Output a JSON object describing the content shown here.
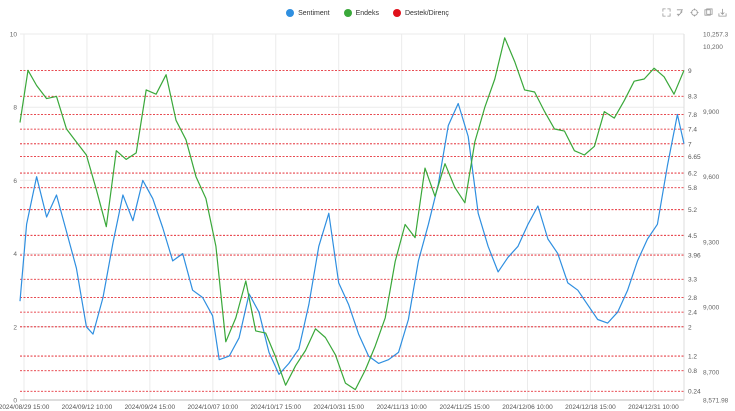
{
  "legend": [
    {
      "name": "Sentiment",
      "color": "#2f8fe0"
    },
    {
      "name": "Endeks",
      "color": "#3aa83a"
    },
    {
      "name": "Destek/Direnç",
      "color": "#e0101a"
    }
  ],
  "toolbox": [
    "zoom-icon",
    "zoom-reset-icon",
    "restore-icon",
    "data-view-icon",
    "save-image-icon"
  ],
  "chart_data": {
    "type": "line",
    "x_labels": [
      "2024/08/29 15:00",
      "2024/09/12 10:00",
      "2024/09/24 15:00",
      "2024/10/07 10:00",
      "2024/10/17 15:00",
      "2024/10/31 15:00",
      "2024/11/13 10:00",
      "2024/11/25 15:00",
      "2024/12/06 10:00",
      "2024/12/18 15:00",
      "2024/12/31 10:00"
    ],
    "y_left": {
      "min": 0,
      "max": 10,
      "ticks": [
        0,
        2,
        4,
        6,
        8,
        10
      ]
    },
    "y_right": {
      "min": 8571.98,
      "max": 10257.3,
      "ticks": [
        8571.98,
        8700,
        9000,
        9300,
        9600,
        9900,
        10200,
        10257.3
      ]
    },
    "grid": true,
    "legend_position": "top-center",
    "levels": [
      0.24,
      0.8,
      1.2,
      2,
      2.4,
      2.8,
      3.3,
      3.96,
      4.5,
      5.2,
      5.8,
      6.2,
      6.65,
      7,
      7.4,
      7.8,
      8.3,
      9
    ],
    "series": [
      {
        "name": "Sentiment",
        "axis": "left",
        "color": "#2f8fe0",
        "x": [
          0,
          0.01,
          0.025,
          0.04,
          0.055,
          0.07,
          0.085,
          0.1,
          0.11,
          0.125,
          0.14,
          0.155,
          0.17,
          0.185,
          0.2,
          0.215,
          0.23,
          0.245,
          0.26,
          0.275,
          0.29,
          0.3,
          0.315,
          0.33,
          0.345,
          0.36,
          0.375,
          0.39,
          0.405,
          0.42,
          0.435,
          0.45,
          0.465,
          0.48,
          0.495,
          0.51,
          0.525,
          0.54,
          0.555,
          0.57,
          0.585,
          0.6,
          0.615,
          0.63,
          0.645,
          0.66,
          0.675,
          0.69,
          0.705,
          0.72,
          0.735,
          0.75,
          0.765,
          0.78,
          0.795,
          0.81,
          0.825,
          0.84,
          0.855,
          0.87,
          0.885,
          0.9,
          0.915,
          0.93,
          0.945,
          0.96,
          0.975,
          0.99,
          1
        ],
        "y": [
          2.7,
          4.8,
          6.1,
          5.0,
          5.6,
          4.6,
          3.6,
          2.0,
          1.8,
          2.8,
          4.3,
          5.6,
          4.9,
          6.0,
          5.5,
          4.7,
          3.8,
          4.0,
          3.0,
          2.8,
          2.3,
          1.1,
          1.2,
          1.7,
          2.9,
          2.4,
          1.3,
          0.7,
          1.0,
          1.4,
          2.6,
          4.2,
          5.1,
          3.2,
          2.6,
          1.8,
          1.2,
          1.0,
          1.1,
          1.3,
          2.2,
          3.8,
          4.8,
          5.9,
          7.5,
          8.1,
          7.2,
          5.1,
          4.2,
          3.5,
          3.9,
          4.2,
          4.8,
          5.3,
          4.4,
          4.0,
          3.2,
          3.0,
          2.6,
          2.2,
          2.1,
          2.4,
          3.0,
          3.8,
          4.4,
          4.8,
          6.4,
          7.8,
          7.0
        ]
      },
      {
        "name": "Endeks",
        "axis": "right",
        "color": "#3aa83a",
        "x": [
          0,
          0.012,
          0.025,
          0.04,
          0.055,
          0.07,
          0.085,
          0.1,
          0.115,
          0.13,
          0.145,
          0.16,
          0.175,
          0.19,
          0.205,
          0.22,
          0.235,
          0.25,
          0.265,
          0.28,
          0.295,
          0.31,
          0.325,
          0.34,
          0.355,
          0.37,
          0.385,
          0.4,
          0.415,
          0.43,
          0.445,
          0.46,
          0.475,
          0.49,
          0.505,
          0.52,
          0.535,
          0.55,
          0.565,
          0.58,
          0.595,
          0.61,
          0.625,
          0.64,
          0.655,
          0.67,
          0.685,
          0.7,
          0.715,
          0.73,
          0.745,
          0.76,
          0.775,
          0.79,
          0.805,
          0.82,
          0.835,
          0.85,
          0.865,
          0.88,
          0.895,
          0.91,
          0.925,
          0.94,
          0.955,
          0.97,
          0.985,
          1
        ],
        "y": [
          9850,
          10090,
          10020,
          9960,
          9970,
          9820,
          9760,
          9700,
          9540,
          9370,
          9720,
          9680,
          9710,
          10000,
          9980,
          10070,
          9860,
          9770,
          9600,
          9500,
          9280,
          8840,
          8950,
          9120,
          8890,
          8880,
          8770,
          8640,
          8730,
          8800,
          8900,
          8860,
          8780,
          8650,
          8620,
          8710,
          8820,
          8950,
          9210,
          9380,
          9320,
          9640,
          9510,
          9660,
          9550,
          9480,
          9760,
          9920,
          10050,
          10240,
          10130,
          10000,
          9990,
          9900,
          9820,
          9810,
          9720,
          9700,
          9740,
          9900,
          9870,
          9950,
          10040,
          10050,
          10100,
          10060,
          9980,
          10090
        ]
      }
    ]
  }
}
